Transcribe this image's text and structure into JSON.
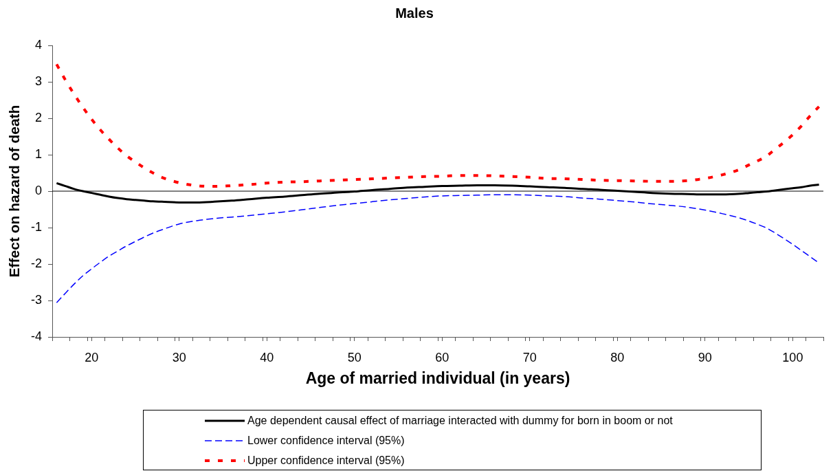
{
  "chart_data": {
    "type": "line",
    "title": "Males",
    "xlabel": "Age of married individual (in years)",
    "ylabel": "Effect on hazard of death",
    "x": [
      16,
      17,
      18,
      19,
      20,
      21,
      22,
      23,
      24,
      25,
      26,
      27,
      28,
      30,
      32,
      34,
      36,
      38,
      40,
      42,
      44,
      46,
      48,
      50,
      52,
      54,
      56,
      58,
      60,
      62,
      64,
      66,
      68,
      70,
      72,
      74,
      76,
      78,
      80,
      82,
      84,
      86,
      88,
      90,
      92,
      94,
      95,
      96,
      97,
      98,
      99,
      100,
      101,
      102,
      103
    ],
    "xlim": [
      15.5,
      103.5
    ],
    "xticks": [
      {
        "value": 15.5,
        "label": null
      },
      {
        "value": 17.5,
        "label": null
      },
      {
        "value": 19.5,
        "label": null
      },
      20,
      {
        "value": 21.5,
        "label": null
      },
      {
        "value": 23.5,
        "label": null
      },
      {
        "value": 25.5,
        "label": null
      },
      {
        "value": 27.5,
        "label": null
      },
      {
        "value": 29.5,
        "label": null
      },
      30,
      {
        "value": 31.5,
        "label": null
      },
      {
        "value": 33.5,
        "label": null
      },
      {
        "value": 35.5,
        "label": null
      },
      {
        "value": 37.5,
        "label": null
      },
      {
        "value": 39.5,
        "label": null
      },
      40,
      {
        "value": 41.5,
        "label": null
      },
      {
        "value": 43.5,
        "label": null
      },
      {
        "value": 45.5,
        "label": null
      },
      {
        "value": 47.5,
        "label": null
      },
      {
        "value": 49.5,
        "label": null
      },
      50,
      {
        "value": 51.5,
        "label": null
      },
      {
        "value": 53.5,
        "label": null
      },
      {
        "value": 55.5,
        "label": null
      },
      {
        "value": 57.5,
        "label": null
      },
      {
        "value": 59.5,
        "label": null
      },
      60,
      {
        "value": 61.5,
        "label": null
      },
      {
        "value": 63.5,
        "label": null
      },
      {
        "value": 65.5,
        "label": null
      },
      {
        "value": 67.5,
        "label": null
      },
      {
        "value": 69.5,
        "label": null
      },
      70,
      {
        "value": 71.5,
        "label": null
      },
      {
        "value": 73.5,
        "label": null
      },
      {
        "value": 75.5,
        "label": null
      },
      {
        "value": 77.5,
        "label": null
      },
      {
        "value": 79.5,
        "label": null
      },
      80,
      {
        "value": 81.5,
        "label": null
      },
      {
        "value": 83.5,
        "label": null
      },
      {
        "value": 85.5,
        "label": null
      },
      {
        "value": 87.5,
        "label": null
      },
      {
        "value": 89.5,
        "label": null
      },
      90,
      {
        "value": 91.5,
        "label": null
      },
      {
        "value": 93.5,
        "label": null
      },
      {
        "value": 95.5,
        "label": null
      },
      {
        "value": 97.5,
        "label": null
      },
      {
        "value": 99.5,
        "label": null
      },
      100,
      {
        "value": 101.5,
        "label": null
      },
      {
        "value": 103.5,
        "label": null
      }
    ],
    "ylim": [
      -4,
      4
    ],
    "yticks": [
      -4,
      -3,
      -2,
      -1,
      0,
      1,
      2,
      3,
      4
    ],
    "series": [
      {
        "name": "Age dependent causal effect of marriage interacted with dummy for born in boom or not",
        "color": "#000000",
        "line_style": "solid",
        "values": [
          0.22,
          0.14,
          0.06,
          0.0,
          -0.05,
          -0.1,
          -0.15,
          -0.19,
          -0.22,
          -0.24,
          -0.26,
          -0.28,
          -0.29,
          -0.31,
          -0.31,
          -0.29,
          -0.26,
          -0.22,
          -0.18,
          -0.15,
          -0.11,
          -0.07,
          -0.04,
          -0.01,
          0.03,
          0.06,
          0.1,
          0.12,
          0.14,
          0.15,
          0.16,
          0.16,
          0.15,
          0.13,
          0.11,
          0.09,
          0.06,
          0.04,
          0.01,
          -0.02,
          -0.05,
          -0.07,
          -0.08,
          -0.09,
          -0.09,
          -0.07,
          -0.05,
          -0.03,
          -0.01,
          0.02,
          0.05,
          0.08,
          0.11,
          0.15,
          0.18
        ]
      },
      {
        "name": "Lower confidence interval (95%)",
        "color": "#0000ff",
        "line_style": "dashed",
        "values": [
          -3.06,
          -2.8,
          -2.55,
          -2.32,
          -2.13,
          -1.95,
          -1.78,
          -1.64,
          -1.5,
          -1.38,
          -1.26,
          -1.15,
          -1.06,
          -0.9,
          -0.81,
          -0.75,
          -0.71,
          -0.67,
          -0.62,
          -0.57,
          -0.51,
          -0.45,
          -0.39,
          -0.34,
          -0.29,
          -0.24,
          -0.2,
          -0.16,
          -0.13,
          -0.12,
          -0.11,
          -0.1,
          -0.1,
          -0.11,
          -0.13,
          -0.15,
          -0.19,
          -0.22,
          -0.26,
          -0.3,
          -0.35,
          -0.39,
          -0.44,
          -0.52,
          -0.62,
          -0.74,
          -0.82,
          -0.91,
          -1.01,
          -1.15,
          -1.3,
          -1.46,
          -1.63,
          -1.8,
          -1.97
        ]
      },
      {
        "name": "Upper confidence interval (95%)",
        "color": "#ff0000",
        "line_style": "dotted",
        "values": [
          3.48,
          3.05,
          2.66,
          2.3,
          1.97,
          1.68,
          1.42,
          1.18,
          0.97,
          0.8,
          0.64,
          0.5,
          0.38,
          0.23,
          0.15,
          0.13,
          0.15,
          0.18,
          0.22,
          0.25,
          0.26,
          0.28,
          0.3,
          0.32,
          0.34,
          0.36,
          0.38,
          0.4,
          0.41,
          0.43,
          0.43,
          0.42,
          0.4,
          0.38,
          0.35,
          0.34,
          0.32,
          0.3,
          0.29,
          0.28,
          0.27,
          0.27,
          0.29,
          0.35,
          0.45,
          0.6,
          0.72,
          0.83,
          0.96,
          1.15,
          1.34,
          1.55,
          1.79,
          2.07,
          2.32
        ]
      }
    ],
    "ref_lines": [
      {
        "axis": "y",
        "value": 0,
        "color": "#000000"
      }
    ],
    "legend": "bottom"
  }
}
